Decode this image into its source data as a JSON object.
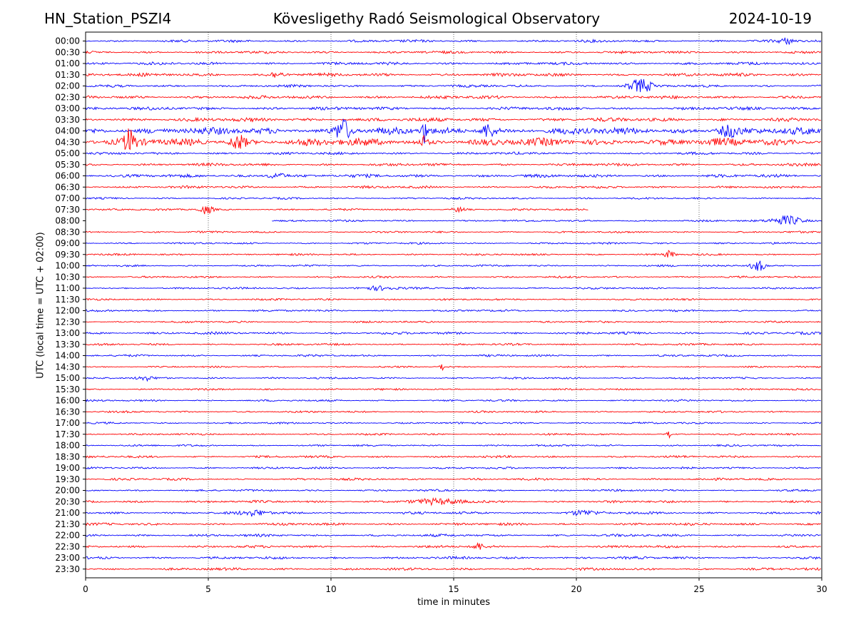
{
  "header": {
    "station": "HN_Station_PSZI4",
    "observatory": "Kövesligethy Radó Seismological Observatory",
    "date": "2024-10-19"
  },
  "chart_data": {
    "type": "line",
    "title": "Kövesligethy Radó Seismological Observatory",
    "xlabel": "time in minutes",
    "ylabel": "UTC (local time = UTC + 02:00)",
    "xlim": [
      0,
      30
    ],
    "x_ticks": [
      "0",
      "5",
      "10",
      "15",
      "20",
      "25",
      "30"
    ],
    "x_tick_values": [
      0,
      5,
      10,
      15,
      20,
      25,
      30
    ],
    "grid": "vertical-dotted",
    "colors": {
      "even": "#0000ff",
      "odd": "#ff0000"
    },
    "rows": [
      {
        "label": "00:00",
        "amp": 2.0,
        "start": 0,
        "end": 30,
        "events": [
          [
            28.6,
            4,
            0.3
          ]
        ]
      },
      {
        "label": "00:30",
        "amp": 2.0,
        "start": 0,
        "end": 30,
        "events": []
      },
      {
        "label": "01:00",
        "amp": 2.2,
        "start": 0,
        "end": 30,
        "events": []
      },
      {
        "label": "01:30",
        "amp": 2.5,
        "start": 0,
        "end": 30,
        "events": [
          [
            7.8,
            4,
            0.3
          ]
        ]
      },
      {
        "label": "02:00",
        "amp": 2.0,
        "start": 0,
        "end": 30,
        "events": [
          [
            22.6,
            9,
            0.5
          ]
        ]
      },
      {
        "label": "02:30",
        "amp": 2.5,
        "start": 0,
        "end": 30,
        "events": []
      },
      {
        "label": "03:00",
        "amp": 2.5,
        "start": 0,
        "end": 30,
        "events": []
      },
      {
        "label": "03:30",
        "amp": 3.0,
        "start": 0,
        "end": 30,
        "events": []
      },
      {
        "label": "04:00",
        "amp": 5.5,
        "start": 0,
        "end": 30,
        "events": [
          [
            10.5,
            16,
            0.3
          ],
          [
            13.8,
            16,
            0.1
          ],
          [
            16.4,
            10,
            0.3
          ],
          [
            26.2,
            8,
            0.4
          ]
        ]
      },
      {
        "label": "04:30",
        "amp": 6.0,
        "start": 0,
        "end": 30,
        "events": [
          [
            1.8,
            16,
            0.2
          ],
          [
            6.2,
            10,
            0.3
          ],
          [
            13.8,
            8,
            0.1
          ]
        ]
      },
      {
        "label": "05:00",
        "amp": 2.0,
        "start": 0,
        "end": 30,
        "events": []
      },
      {
        "label": "05:30",
        "amp": 2.2,
        "start": 0,
        "end": 30,
        "events": []
      },
      {
        "label": "06:00",
        "amp": 2.5,
        "start": 0,
        "end": 30,
        "events": [
          [
            7.8,
            4,
            0.4
          ]
        ]
      },
      {
        "label": "06:30",
        "amp": 2.0,
        "start": 0,
        "end": 30,
        "events": []
      },
      {
        "label": "07:00",
        "amp": 1.5,
        "start": 0,
        "end": 30,
        "events": []
      },
      {
        "label": "07:30",
        "amp": 1.5,
        "start": 0,
        "end": 20.5,
        "events": [
          [
            4.9,
            6,
            0.3
          ],
          [
            15.2,
            3,
            0.3
          ]
        ]
      },
      {
        "label": "08:00",
        "amp": 1.5,
        "start": 7.6,
        "end": 30,
        "events": [
          [
            28.6,
            7,
            0.6
          ]
        ]
      },
      {
        "label": "08:30",
        "amp": 1.5,
        "start": 0,
        "end": 30,
        "events": []
      },
      {
        "label": "09:00",
        "amp": 1.5,
        "start": 0,
        "end": 30,
        "events": []
      },
      {
        "label": "09:30",
        "amp": 1.5,
        "start": 0,
        "end": 30,
        "events": [
          [
            23.8,
            5,
            0.2
          ]
        ]
      },
      {
        "label": "10:00",
        "amp": 1.5,
        "start": 0,
        "end": 30,
        "events": [
          [
            27.4,
            8,
            0.3
          ]
        ]
      },
      {
        "label": "10:30",
        "amp": 1.5,
        "start": 0,
        "end": 30,
        "events": []
      },
      {
        "label": "11:00",
        "amp": 1.5,
        "start": 0,
        "end": 30,
        "events": [
          [
            12.0,
            3,
            0.6
          ]
        ]
      },
      {
        "label": "11:30",
        "amp": 1.5,
        "start": 0,
        "end": 30,
        "events": []
      },
      {
        "label": "12:00",
        "amp": 1.6,
        "start": 0,
        "end": 30,
        "events": []
      },
      {
        "label": "12:30",
        "amp": 1.5,
        "start": 0,
        "end": 30,
        "events": []
      },
      {
        "label": "13:00",
        "amp": 2.0,
        "start": 0,
        "end": 30,
        "events": []
      },
      {
        "label": "13:30",
        "amp": 1.6,
        "start": 0,
        "end": 30,
        "events": []
      },
      {
        "label": "14:00",
        "amp": 1.6,
        "start": 0,
        "end": 30,
        "events": []
      },
      {
        "label": "14:30",
        "amp": 1.3,
        "start": 0,
        "end": 30,
        "events": [
          [
            14.5,
            5,
            0.1
          ]
        ]
      },
      {
        "label": "15:00",
        "amp": 1.5,
        "start": 0,
        "end": 30,
        "events": [
          [
            2.4,
            3,
            0.3
          ]
        ]
      },
      {
        "label": "15:30",
        "amp": 1.4,
        "start": 0,
        "end": 30,
        "events": []
      },
      {
        "label": "16:00",
        "amp": 1.5,
        "start": 0,
        "end": 30,
        "events": []
      },
      {
        "label": "16:30",
        "amp": 1.5,
        "start": 0,
        "end": 30,
        "events": []
      },
      {
        "label": "17:00",
        "amp": 1.5,
        "start": 0,
        "end": 30,
        "events": []
      },
      {
        "label": "17:30",
        "amp": 1.5,
        "start": 0,
        "end": 30,
        "events": [
          [
            23.8,
            5,
            0.1
          ]
        ]
      },
      {
        "label": "18:00",
        "amp": 1.5,
        "start": 0,
        "end": 30,
        "events": []
      },
      {
        "label": "18:30",
        "amp": 1.8,
        "start": 0,
        "end": 30,
        "events": []
      },
      {
        "label": "19:00",
        "amp": 1.6,
        "start": 0,
        "end": 30,
        "events": []
      },
      {
        "label": "19:30",
        "amp": 1.8,
        "start": 0,
        "end": 30,
        "events": []
      },
      {
        "label": "20:00",
        "amp": 1.6,
        "start": 0,
        "end": 30,
        "events": []
      },
      {
        "label": "20:30",
        "amp": 2.0,
        "start": 0,
        "end": 30,
        "events": [
          [
            14.3,
            3,
            1.2
          ]
        ]
      },
      {
        "label": "21:00",
        "amp": 2.0,
        "start": 0,
        "end": 30,
        "events": [
          [
            6.9,
            4,
            0.5
          ],
          [
            20.2,
            3,
            0.6
          ]
        ]
      },
      {
        "label": "21:30",
        "amp": 2.0,
        "start": 0,
        "end": 30,
        "events": []
      },
      {
        "label": "22:00",
        "amp": 2.0,
        "start": 0,
        "end": 30,
        "events": []
      },
      {
        "label": "22:30",
        "amp": 2.0,
        "start": 0,
        "end": 30,
        "events": [
          [
            16.0,
            5,
            0.2
          ]
        ]
      },
      {
        "label": "23:00",
        "amp": 2.0,
        "start": 0,
        "end": 30,
        "events": []
      },
      {
        "label": "23:30",
        "amp": 2.0,
        "start": 0,
        "end": 30,
        "events": []
      }
    ]
  }
}
